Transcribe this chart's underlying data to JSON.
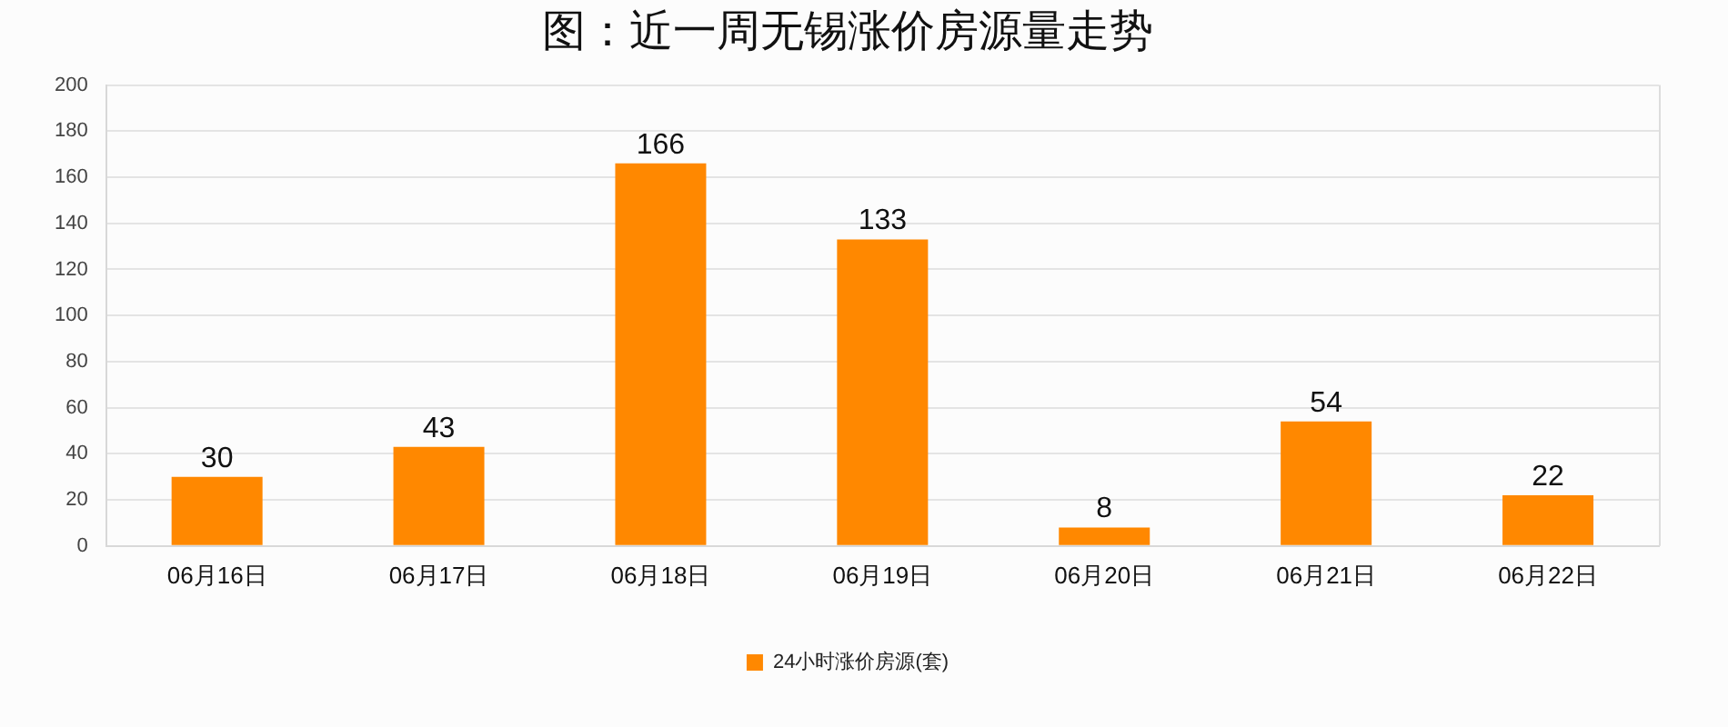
{
  "chart_data": {
    "type": "bar",
    "title": "图：近一周无锡涨价房源量走势",
    "categories": [
      "06月16日",
      "06月17日",
      "06月18日",
      "06月19日",
      "06月20日",
      "06月21日",
      "06月22日"
    ],
    "series": [
      {
        "name": "24小时涨价房源(套)",
        "color": "#ff8800",
        "values": [
          30,
          43,
          166,
          133,
          8,
          54,
          22
        ]
      }
    ],
    "ylim": [
      0,
      200
    ],
    "yticks": [
      0,
      20,
      40,
      60,
      80,
      100,
      120,
      140,
      160,
      180,
      200
    ],
    "grid": "y",
    "legend": "bottom",
    "data_labels": true
  }
}
